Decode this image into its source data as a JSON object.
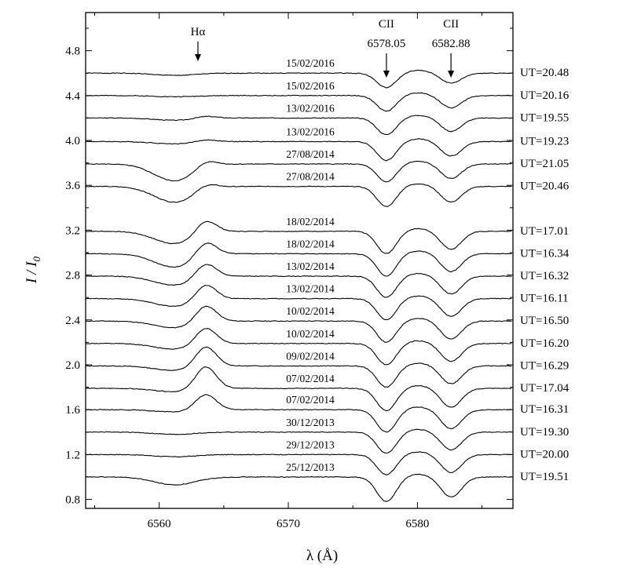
{
  "chart_data": {
    "type": "line",
    "xlabel": "λ (Å)",
    "ylabel": "I / I₀",
    "xlim": [
      6554.3,
      6587.4
    ],
    "ylim": [
      0.72,
      5.14
    ],
    "xticks": [
      6560,
      6570,
      6580
    ],
    "yticks": [
      0.8,
      1.2,
      1.6,
      2.0,
      2.4,
      2.8,
      3.2,
      3.6,
      4.0,
      4.4,
      4.8
    ],
    "ytick_labels": [
      "0.8",
      "1.2",
      "1.6",
      "2.0",
      "2.4",
      "2.8",
      "3.2",
      "3.6",
      "4.0",
      "4.4",
      "4.8"
    ],
    "annotations": [
      {
        "text": "Hα",
        "subtext": "",
        "x": 6563.0
      },
      {
        "text": "CII",
        "subtext": "6578.05",
        "x": 6577.6
      },
      {
        "text": "CII",
        "subtext": "6582.88",
        "x": 6582.6
      }
    ],
    "series": [
      {
        "date": "15/02/2016",
        "ut": "UT=20.48",
        "offset": 4.6,
        "emis_amp": 0.0,
        "abs_amp": 0.02,
        "c1_depth": 0.13,
        "c2_depth": 0.09
      },
      {
        "date": "15/02/2016",
        "ut": "UT=20.16",
        "offset": 4.4,
        "emis_amp": 0.0,
        "abs_amp": 0.01,
        "c1_depth": 0.14,
        "c2_depth": 0.11
      },
      {
        "date": "13/02/2016",
        "ut": "UT=19.55",
        "offset": 4.2,
        "emis_amp": 0.02,
        "abs_amp": 0.02,
        "c1_depth": 0.15,
        "c2_depth": 0.12
      },
      {
        "date": "13/02/2016",
        "ut": "UT=19.23",
        "offset": 3.99,
        "emis_amp": 0.02,
        "abs_amp": 0.02,
        "c1_depth": 0.17,
        "c2_depth": 0.13
      },
      {
        "date": "27/08/2014",
        "ut": "UT=21.05",
        "offset": 3.79,
        "emis_amp": 0.06,
        "abs_amp": 0.15,
        "c1_depth": 0.16,
        "c2_depth": 0.13
      },
      {
        "date": "27/08/2014",
        "ut": "UT=20.46",
        "offset": 3.59,
        "emis_amp": 0.05,
        "abs_amp": 0.14,
        "c1_depth": 0.18,
        "c2_depth": 0.14
      },
      {
        "date": "18/02/2014",
        "ut": "UT=17.01",
        "offset": 3.19,
        "emis_amp": 0.12,
        "abs_amp": 0.11,
        "c1_depth": 0.2,
        "c2_depth": 0.16
      },
      {
        "date": "18/02/2014",
        "ut": "UT=16.34",
        "offset": 2.99,
        "emis_amp": 0.13,
        "abs_amp": 0.12,
        "c1_depth": 0.2,
        "c2_depth": 0.16
      },
      {
        "date": "13/02/2014",
        "ut": "UT=16.32",
        "offset": 2.79,
        "emis_amp": 0.13,
        "abs_amp": 0.08,
        "c1_depth": 0.19,
        "c2_depth": 0.16
      },
      {
        "date": "13/02/2014",
        "ut": "UT=16.11",
        "offset": 2.59,
        "emis_amp": 0.14,
        "abs_amp": 0.07,
        "c1_depth": 0.19,
        "c2_depth": 0.16
      },
      {
        "date": "10/02/2014",
        "ut": "UT=16.50",
        "offset": 2.39,
        "emis_amp": 0.15,
        "abs_amp": 0.06,
        "c1_depth": 0.19,
        "c2_depth": 0.16
      },
      {
        "date": "10/02/2014",
        "ut": "UT=16.20",
        "offset": 2.19,
        "emis_amp": 0.15,
        "abs_amp": 0.05,
        "c1_depth": 0.19,
        "c2_depth": 0.16
      },
      {
        "date": "09/02/2014",
        "ut": "UT=16.29",
        "offset": 1.99,
        "emis_amp": 0.18,
        "abs_amp": 0.04,
        "c1_depth": 0.19,
        "c2_depth": 0.16
      },
      {
        "date": "07/02/2014",
        "ut": "UT=17.04",
        "offset": 1.79,
        "emis_amp": 0.2,
        "abs_amp": 0.03,
        "c1_depth": 0.2,
        "c2_depth": 0.17
      },
      {
        "date": "07/02/2014",
        "ut": "UT=16.31",
        "offset": 1.6,
        "emis_amp": 0.14,
        "abs_amp": 0.02,
        "c1_depth": 0.2,
        "c2_depth": 0.17
      },
      {
        "date": "30/12/2013",
        "ut": "UT=19.30",
        "offset": 1.4,
        "emis_amp": 0.0,
        "abs_amp": 0.02,
        "c1_depth": 0.19,
        "c2_depth": 0.16
      },
      {
        "date": "29/12/2013",
        "ut": "UT=20.00",
        "offset": 1.2,
        "emis_amp": 0.0,
        "abs_amp": 0.02,
        "c1_depth": 0.18,
        "c2_depth": 0.16
      },
      {
        "date": "25/12/2013",
        "ut": "UT=19.51",
        "offset": 1.0,
        "emis_amp": 0.0,
        "abs_amp": 0.07,
        "c1_depth": 0.22,
        "c2_depth": 0.18
      }
    ]
  }
}
